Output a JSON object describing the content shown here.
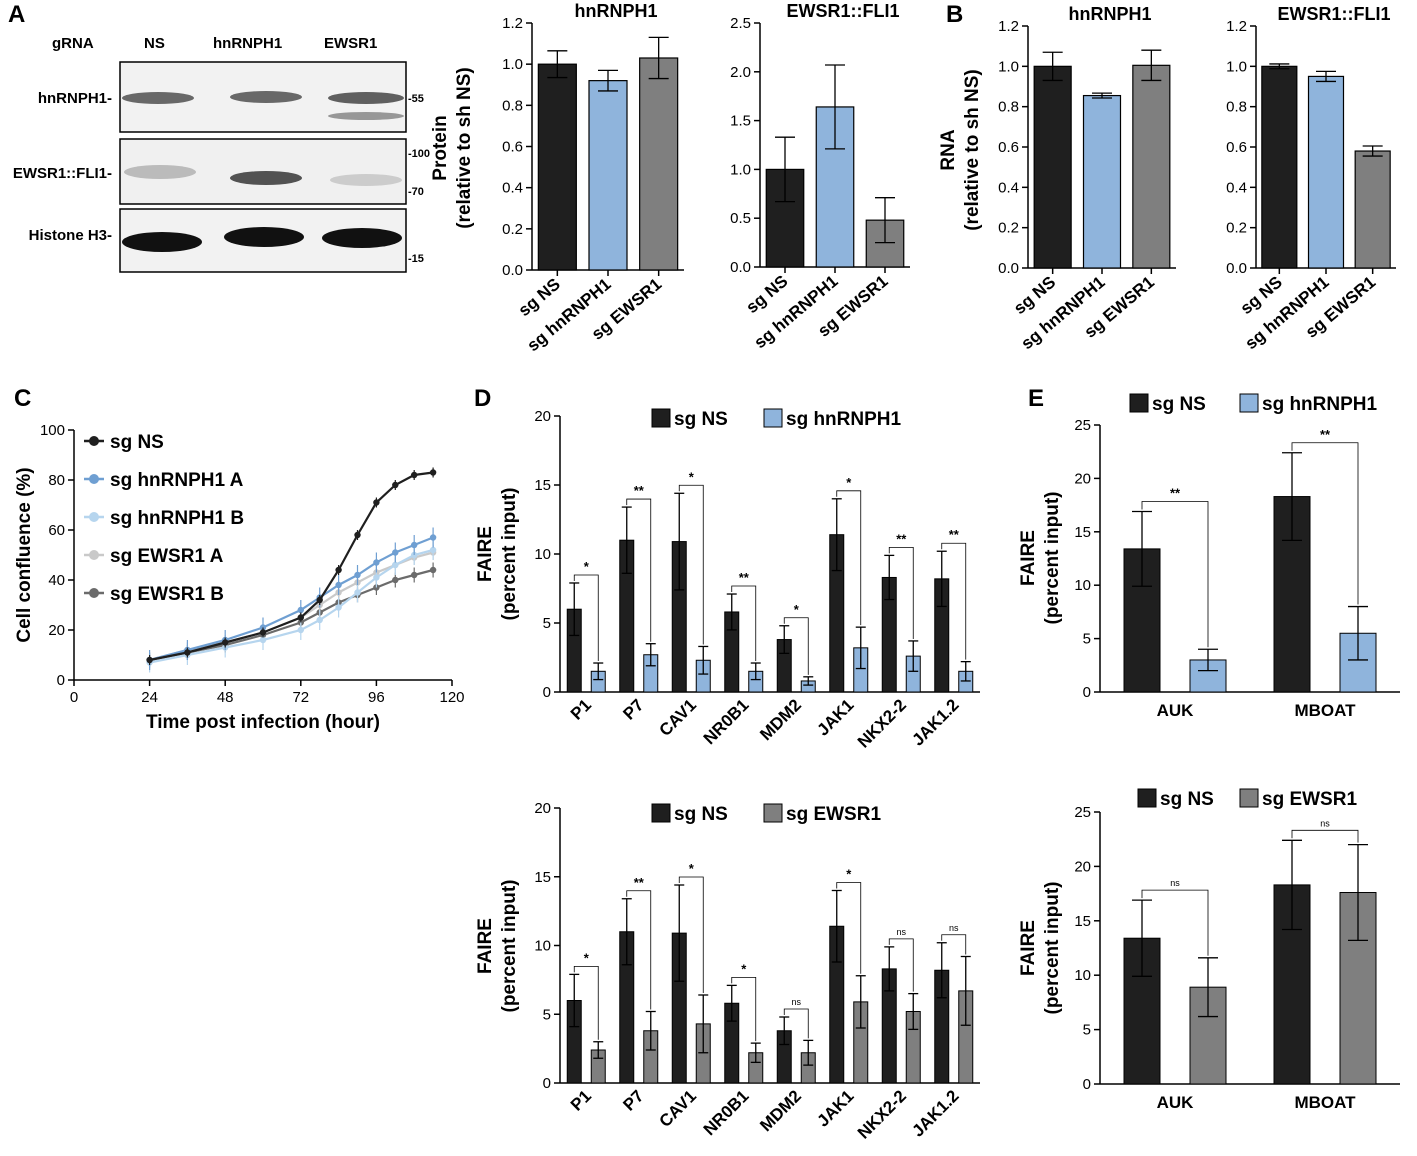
{
  "colors": {
    "ns": "#1f1f1f",
    "hnrnph1": "#8fb4dc",
    "ewsr1": "#7f7f7f",
    "hnA": "#6f9fd2",
    "hnB": "#b6d5ee",
    "ewA": "#c9c9c9",
    "ewB": "#6b6b6b"
  },
  "panels": {
    "A": "A",
    "B": "B",
    "C": "C",
    "D": "D",
    "E": "E"
  },
  "western": {
    "header": {
      "grna": "gRNA",
      "ns": "NS",
      "hn": "hnRNPH1",
      "ew": "EWSR1"
    },
    "rows": {
      "hn": "hnRNPH1-",
      "ef": "EWSR1::FLI1-",
      "h3": "Histone H3-"
    },
    "markers": {
      "m55": "-55",
      "m100": "-100",
      "m70": "-70",
      "m15": "-15"
    }
  },
  "chart_data": [
    {
      "id": "A1",
      "type": "bar",
      "title": "hnRNPH1",
      "ylabel": "Protein",
      "ylabel2": "(relative to sh NS)",
      "categories": [
        "sg NS",
        "sg hnRNPH1",
        "sg EWSR1"
      ],
      "values": [
        1.0,
        0.92,
        1.03
      ],
      "errors": [
        0.065,
        0.05,
        0.1
      ],
      "ylim": [
        0,
        1.2
      ],
      "yticks": [
        "0.0",
        "0.2",
        "0.4",
        "0.6",
        "0.8",
        "1.0",
        "1.2"
      ]
    },
    {
      "id": "A2",
      "type": "bar",
      "title": "EWSR1::FLI1",
      "categories": [
        "sg NS",
        "sg hnRNPH1",
        "sg EWSR1"
      ],
      "values": [
        1.0,
        1.64,
        0.48
      ],
      "errors": [
        0.33,
        0.43,
        0.23
      ],
      "ylim": [
        0,
        2.5
      ],
      "yticks": [
        "0.0",
        "0.5",
        "1.0",
        "1.5",
        "2.0",
        "2.5"
      ]
    },
    {
      "id": "B1",
      "type": "bar",
      "title": "hnRNPH1",
      "ylabel": "RNA",
      "ylabel2": "(relative to sh NS)",
      "categories": [
        "sg NS",
        "sg hnRNPH1",
        "sg EWSR1"
      ],
      "values": [
        1.0,
        0.855,
        1.005
      ],
      "errors": [
        0.07,
        0.012,
        0.075
      ],
      "ylim": [
        0,
        1.2
      ],
      "yticks": [
        "0.0",
        "0.2",
        "0.4",
        "0.6",
        "0.8",
        "1.0",
        "1.2"
      ]
    },
    {
      "id": "B2",
      "type": "bar",
      "title": "EWSR1::FLI1",
      "categories": [
        "sg NS",
        "sg hnRNPH1",
        "sg EWSR1"
      ],
      "values": [
        1.0,
        0.95,
        0.58
      ],
      "errors": [
        0.012,
        0.025,
        0.025
      ],
      "ylim": [
        0,
        1.2
      ],
      "yticks": [
        "0.0",
        "0.2",
        "0.4",
        "0.6",
        "0.8",
        "1.0",
        "1.2"
      ]
    },
    {
      "id": "C",
      "type": "line",
      "xlabel": "Time post infection (hour)",
      "ylabel": "Cell confluence (%)",
      "xlim": [
        0,
        120
      ],
      "ylim": [
        0,
        100
      ],
      "xticks": [
        "0",
        "24",
        "48",
        "72",
        "96",
        "120"
      ],
      "yticks": [
        "0",
        "20",
        "40",
        "60",
        "80",
        "100"
      ],
      "x": [
        24,
        36,
        48,
        60,
        72,
        78,
        84,
        90,
        96,
        102,
        108,
        114
      ],
      "series": [
        {
          "name": "sg NS",
          "values": [
            8,
            11,
            15,
            19,
            25,
            32,
            44,
            58,
            71,
            78,
            82,
            83
          ],
          "error": 2
        },
        {
          "name": "sg hnRNPH1 A",
          "values": [
            8,
            12,
            16,
            21,
            28,
            33,
            38,
            42,
            47,
            51,
            54,
            57
          ],
          "error": 4
        },
        {
          "name": "sg hnRNPH1 B",
          "values": [
            7,
            10,
            13,
            16,
            20,
            24,
            29,
            35,
            41,
            46,
            50,
            52
          ],
          "error": 4
        },
        {
          "name": "sg EWSR1 A",
          "values": [
            8,
            12,
            15,
            19,
            25,
            30,
            35,
            39,
            43,
            46,
            49,
            51
          ],
          "error": 3
        },
        {
          "name": "sg EWSR1 B",
          "values": [
            8,
            11,
            14,
            18,
            23,
            27,
            31,
            34,
            37,
            40,
            42,
            44
          ],
          "error": 3
        }
      ]
    },
    {
      "id": "D1",
      "type": "bar",
      "ylabel": "FAIRE",
      "ylabel2": "(percent input)",
      "legend": [
        "sg NS",
        "sg hnRNPH1"
      ],
      "categories": [
        "P1",
        "P7",
        "CAV1",
        "NR0B1",
        "MDM2",
        "JAK1",
        "NKX2-2",
        "JAK1.2"
      ],
      "series": [
        {
          "name": "sg NS",
          "values": [
            6.0,
            11.0,
            10.9,
            5.8,
            3.8,
            11.4,
            8.3,
            8.2
          ],
          "errors": [
            1.9,
            2.4,
            3.5,
            1.3,
            1.0,
            2.6,
            1.6,
            2.0
          ]
        },
        {
          "name": "sg hnRNPH1",
          "values": [
            1.5,
            2.7,
            2.3,
            1.5,
            0.8,
            3.2,
            2.6,
            1.5
          ],
          "errors": [
            0.6,
            0.8,
            1.0,
            0.6,
            0.3,
            1.5,
            1.1,
            0.7
          ]
        }
      ],
      "significance": [
        "*",
        "**",
        "*",
        "**",
        "*",
        "*",
        "**",
        "**"
      ],
      "ylim": [
        0,
        20
      ],
      "yticks": [
        "0",
        "5",
        "10",
        "15",
        "20"
      ]
    },
    {
      "id": "D2",
      "type": "bar",
      "ylabel": "FAIRE",
      "ylabel2": "(percent input)",
      "legend": [
        "sg NS",
        "sg EWSR1"
      ],
      "categories": [
        "P1",
        "P7",
        "CAV1",
        "NR0B1",
        "MDM2",
        "JAK1",
        "NKX2-2",
        "JAK1.2"
      ],
      "series": [
        {
          "name": "sg NS",
          "values": [
            6.0,
            11.0,
            10.9,
            5.8,
            3.8,
            11.4,
            8.3,
            8.2
          ],
          "errors": [
            1.9,
            2.4,
            3.5,
            1.3,
            1.0,
            2.6,
            1.6,
            2.0
          ]
        },
        {
          "name": "sg EWSR1",
          "values": [
            2.4,
            3.8,
            4.3,
            2.2,
            2.2,
            5.9,
            5.2,
            6.7
          ],
          "errors": [
            0.6,
            1.4,
            2.1,
            0.7,
            0.9,
            1.9,
            1.3,
            2.5
          ]
        }
      ],
      "significance": [
        "*",
        "**",
        "*",
        "*",
        "ns",
        "*",
        "ns",
        "ns"
      ],
      "ylim": [
        0,
        20
      ],
      "yticks": [
        "0",
        "5",
        "10",
        "15",
        "20"
      ]
    },
    {
      "id": "E1",
      "type": "bar",
      "ylabel": "FAIRE",
      "ylabel2": "(percent input)",
      "legend": [
        "sg NS",
        "sg hnRNPH1"
      ],
      "categories": [
        "AUK",
        "MBOAT"
      ],
      "series": [
        {
          "name": "sg NS",
          "values": [
            13.4,
            18.3
          ],
          "errors": [
            3.5,
            4.1
          ]
        },
        {
          "name": "sg hnRNPH1",
          "values": [
            3.0,
            5.5
          ],
          "errors": [
            1.0,
            2.5
          ]
        }
      ],
      "significance": [
        "**",
        "**"
      ],
      "ylim": [
        0,
        25
      ],
      "yticks": [
        "0",
        "5",
        "10",
        "15",
        "20",
        "25"
      ]
    },
    {
      "id": "E2",
      "type": "bar",
      "ylabel": "FAIRE",
      "ylabel2": "(percent input)",
      "legend": [
        "sg NS",
        "sg EWSR1"
      ],
      "categories": [
        "AUK",
        "MBOAT"
      ],
      "series": [
        {
          "name": "sg NS",
          "values": [
            13.4,
            18.3
          ],
          "errors": [
            3.5,
            4.1
          ]
        },
        {
          "name": "sg EWSR1",
          "values": [
            8.9,
            17.6
          ],
          "errors": [
            2.7,
            4.4
          ]
        }
      ],
      "significance": [
        "ns",
        "ns"
      ],
      "ylim": [
        0,
        25
      ],
      "yticks": [
        "0",
        "5",
        "10",
        "15",
        "20",
        "25"
      ]
    }
  ]
}
